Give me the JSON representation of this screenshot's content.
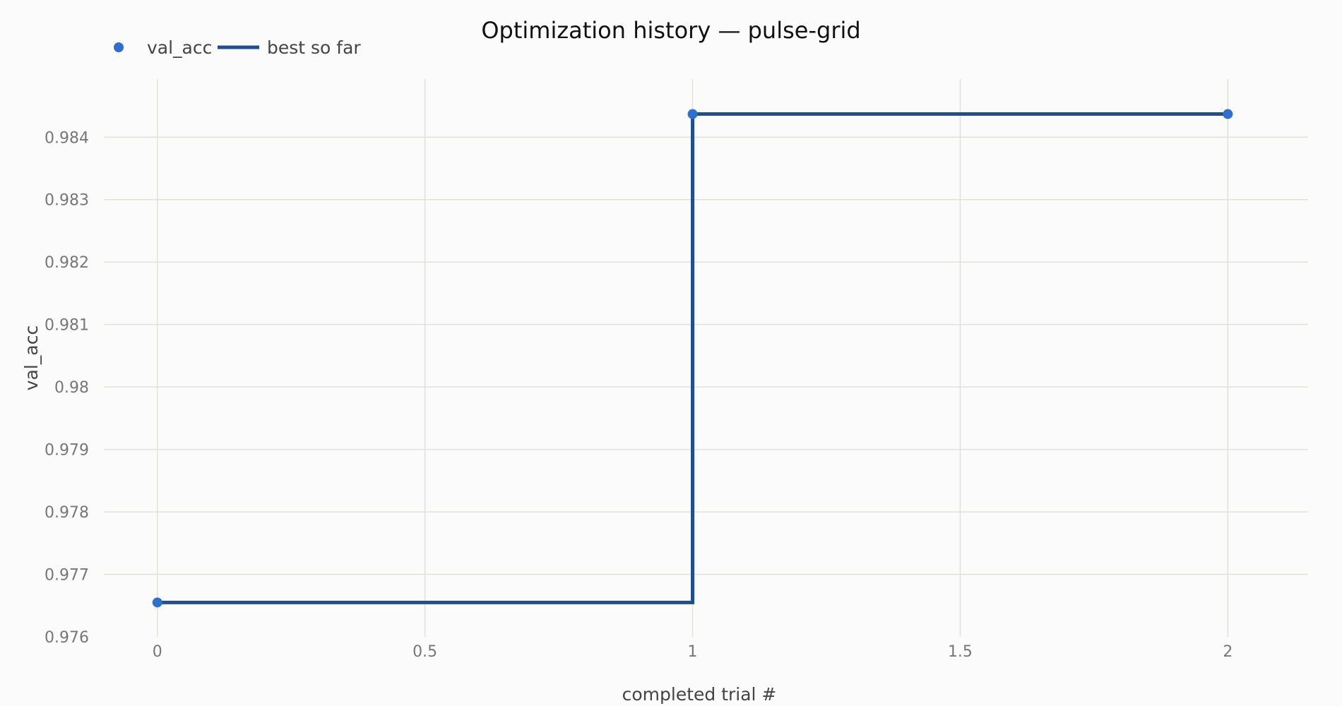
{
  "chart_data": {
    "type": "line",
    "title": "Optimization history — pulse-grid",
    "xlabel": "completed trial #",
    "ylabel": "val_acc",
    "xlim": [
      -0.1,
      2.15
    ],
    "ylim": [
      0.976,
      0.98493
    ],
    "x_ticks": [
      {
        "value": 0,
        "label": "0"
      },
      {
        "value": 0.5,
        "label": "0.5"
      },
      {
        "value": 1,
        "label": "1"
      },
      {
        "value": 1.5,
        "label": "1.5"
      },
      {
        "value": 2,
        "label": "2"
      }
    ],
    "y_ticks": [
      {
        "value": 0.976,
        "label": "0.976"
      },
      {
        "value": 0.977,
        "label": "0.977"
      },
      {
        "value": 0.978,
        "label": "0.978"
      },
      {
        "value": 0.979,
        "label": "0.979"
      },
      {
        "value": 0.98,
        "label": "0.98"
      },
      {
        "value": 0.981,
        "label": "0.981"
      },
      {
        "value": 0.982,
        "label": "0.982"
      },
      {
        "value": 0.983,
        "label": "0.983"
      },
      {
        "value": 0.984,
        "label": "0.984"
      }
    ],
    "grid": true,
    "legend_position": "top-left",
    "series": [
      {
        "name": "val_acc",
        "mode": "markers",
        "color": "#2f6fd0",
        "x": [
          0,
          1,
          2
        ],
        "y": [
          0.97655,
          0.98437,
          0.98437
        ]
      },
      {
        "name": "best so far",
        "mode": "step",
        "color": "#1f4e91",
        "x": [
          0,
          1,
          2
        ],
        "y": [
          0.97655,
          0.98437,
          0.98437
        ]
      }
    ]
  }
}
